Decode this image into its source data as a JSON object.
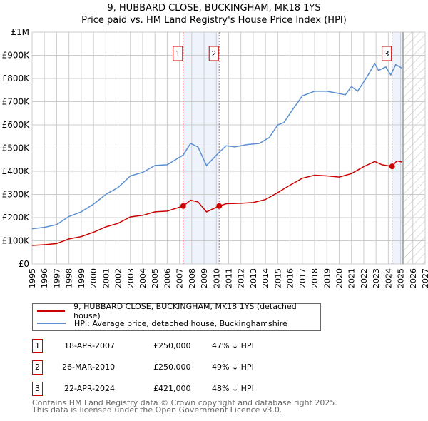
{
  "chart_data": {
    "type": "line",
    "title": "9, HUBBARD CLOSE, BUCKINGHAM, MK18 1YS",
    "subtitle": "Price paid vs. HM Land Registry's House Price Index (HPI)",
    "xlim": [
      1995,
      2027
    ],
    "ylim": [
      0,
      1000000
    ],
    "x_ticks": [
      "1995",
      "1996",
      "1997",
      "1998",
      "1999",
      "2000",
      "2001",
      "2002",
      "2003",
      "2004",
      "2005",
      "2006",
      "2007",
      "2008",
      "2009",
      "2010",
      "2011",
      "2012",
      "2013",
      "2014",
      "2015",
      "2016",
      "2017",
      "2018",
      "2019",
      "2020",
      "2021",
      "2022",
      "2023",
      "2024",
      "2025",
      "2026",
      "2027"
    ],
    "y_ticks": [
      {
        "v": 0,
        "l": "£0"
      },
      {
        "v": 100000,
        "l": "£100K"
      },
      {
        "v": 200000,
        "l": "£200K"
      },
      {
        "v": 300000,
        "l": "£300K"
      },
      {
        "v": 400000,
        "l": "£400K"
      },
      {
        "v": 500000,
        "l": "£500K"
      },
      {
        "v": 600000,
        "l": "£600K"
      },
      {
        "v": 700000,
        "l": "£700K"
      },
      {
        "v": 800000,
        "l": "£800K"
      },
      {
        "v": 900000,
        "l": "£900K"
      },
      {
        "v": 1000000,
        "l": "£1M"
      }
    ],
    "grid": true,
    "series": [
      {
        "name": "9, HUBBARD CLOSE, BUCKINGHAM, MK18 1YS (detached house)",
        "color": "#cc0000",
        "x": [
          1995,
          1996,
          1997,
          1998,
          1999,
          2000,
          2001,
          2002,
          2003,
          2004,
          2005,
          2006,
          2007.3,
          2007.9,
          2008.5,
          2009.2,
          2010.23,
          2010.8,
          2012,
          2013,
          2014,
          2015,
          2016,
          2017,
          2018,
          2019,
          2020,
          2021,
          2022,
          2022.9,
          2023.5,
          2024.3,
          2024.7,
          2025.1
        ],
        "y": [
          80000,
          83000,
          88000,
          108000,
          118000,
          137000,
          160000,
          175000,
          203000,
          210000,
          225000,
          228000,
          250000,
          275000,
          268000,
          225000,
          250000,
          260000,
          262000,
          265000,
          278000,
          308000,
          340000,
          370000,
          383000,
          380000,
          375000,
          390000,
          420000,
          442000,
          428000,
          421000,
          445000,
          440000
        ]
      },
      {
        "name": "HPI: Average price, detached house, Buckinghamshire",
        "color": "#5b8fd0",
        "x": [
          1995,
          1996,
          1997,
          1998,
          1999,
          2000,
          2001,
          2002,
          2003,
          2004,
          2005,
          2006,
          2007.3,
          2007.9,
          2008.5,
          2009.2,
          2010.2,
          2010.8,
          2011.5,
          2012.5,
          2013.5,
          2014.3,
          2015,
          2015.5,
          2016.2,
          2017,
          2018,
          2019,
          2020,
          2020.5,
          2021,
          2021.5,
          2022.3,
          2022.9,
          2023.2,
          2023.8,
          2024.2,
          2024.6,
          2025.1
        ],
        "y": [
          152000,
          158000,
          170000,
          205000,
          225000,
          258000,
          300000,
          330000,
          380000,
          395000,
          425000,
          428000,
          470000,
          520000,
          505000,
          425000,
          480000,
          510000,
          505000,
          515000,
          520000,
          545000,
          600000,
          610000,
          665000,
          725000,
          745000,
          745000,
          735000,
          730000,
          765000,
          745000,
          810000,
          865000,
          835000,
          850000,
          815000,
          860000,
          845000
        ]
      }
    ],
    "sales": [
      {
        "n": "1",
        "x": 2007.3,
        "y": 250000,
        "date": "18-APR-2007",
        "price": "£250,000",
        "hpi": "47% ↓ HPI"
      },
      {
        "n": "2",
        "x": 2010.23,
        "y": 250000,
        "date": "26-MAR-2010",
        "price": "£250,000",
        "hpi": "49% ↓ HPI"
      },
      {
        "n": "3",
        "x": 2024.31,
        "y": 421000,
        "date": "22-APR-2024",
        "price": "£421,000",
        "hpi": "48% ↓ HPI"
      }
    ],
    "projection_start": 2025.2,
    "legend": "bottom"
  },
  "footer": [
    "Contains HM Land Registry data © Crown copyright and database right 2025.",
    "This data is licensed under the Open Government Licence v3.0."
  ]
}
